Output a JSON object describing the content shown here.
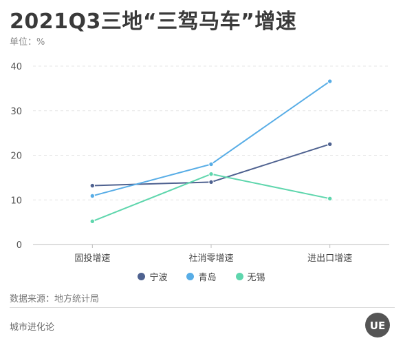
{
  "title": "2021Q3三地“三驾马车”增速",
  "unit_label": "单位：%",
  "source": "数据来源：地方统计局",
  "brand": "城市进化论",
  "logo_text": "UE",
  "chart_data": {
    "type": "line",
    "categories": [
      "固投增速",
      "社消零增速",
      "进出口增速"
    ],
    "ylim": [
      0,
      40
    ],
    "yticks": [
      0,
      10,
      20,
      30,
      40
    ],
    "grid": true,
    "legend_position": "bottom",
    "series": [
      {
        "name": "宁波",
        "color": "#4f6290",
        "values": [
          13.2,
          14.0,
          22.5
        ]
      },
      {
        "name": "青岛",
        "color": "#58ade6",
        "values": [
          10.9,
          18.0,
          36.6
        ]
      },
      {
        "name": "无锡",
        "color": "#5fd6ad",
        "values": [
          5.2,
          15.8,
          10.3
        ]
      }
    ]
  }
}
